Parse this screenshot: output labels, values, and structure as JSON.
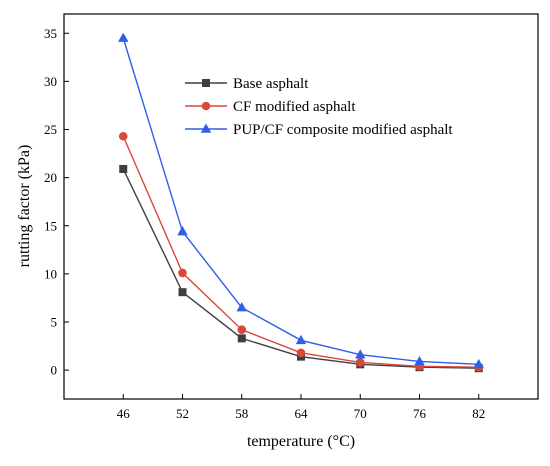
{
  "chart_data": {
    "type": "line",
    "title": "",
    "xlabel": "temperature (°C)",
    "ylabel": "rutting factor (kPa)",
    "x": [
      46,
      52,
      58,
      64,
      70,
      76,
      82
    ],
    "x_tick_labels": [
      "46",
      "52",
      "58",
      "64",
      "70",
      "76",
      "82"
    ],
    "xlim": [
      40,
      88
    ],
    "ylim": [
      -3,
      37
    ],
    "y_ticks": [
      0,
      5,
      10,
      15,
      20,
      25,
      30,
      35
    ],
    "y_tick_labels": [
      "0",
      "5",
      "10",
      "15",
      "20",
      "25",
      "30",
      "35"
    ],
    "grid": false,
    "legend_position": "top-right",
    "series": [
      {
        "name": "Base asphalt",
        "color": "#3f3f3f",
        "marker": "square",
        "values": [
          20.9,
          8.1,
          3.3,
          1.4,
          0.6,
          0.3,
          0.2
        ]
      },
      {
        "name": "CF modified asphalt",
        "color": "#d9483b",
        "marker": "circle",
        "values": [
          24.3,
          10.1,
          4.2,
          1.8,
          0.8,
          0.4,
          0.3
        ]
      },
      {
        "name": "PUP/CF composite modified asphalt",
        "color": "#2f5fe8",
        "marker": "triangle",
        "values": [
          34.5,
          14.4,
          6.5,
          3.1,
          1.6,
          0.9,
          0.6
        ]
      }
    ]
  }
}
